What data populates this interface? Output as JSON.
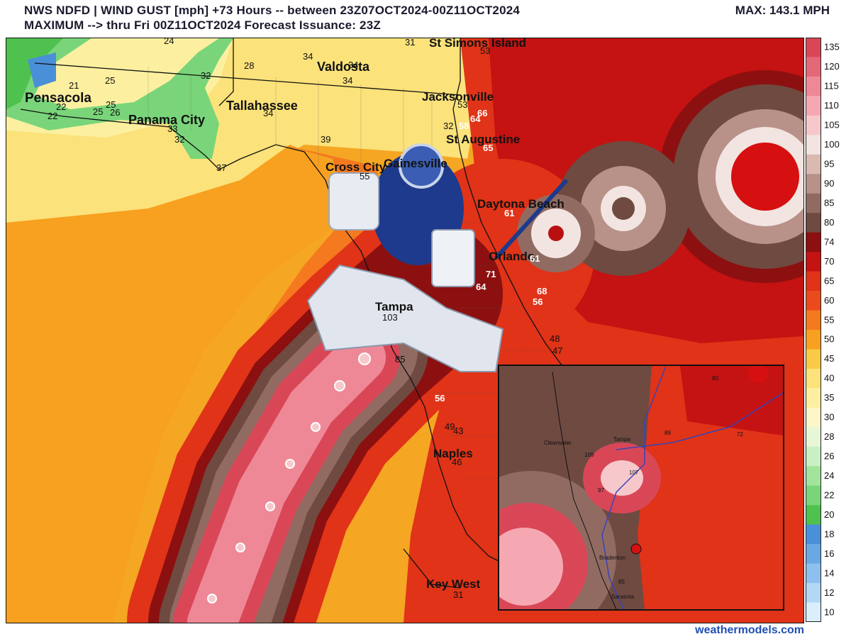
{
  "header": {
    "line1": "NWS NDFD | WIND GUST [mph] +73 Hours -- between 23Z07OCT2024-00Z11OCT2024",
    "line2": "MAXIMUM --> thru Fri 00Z11OCT2024   Forecast Issuance: 23Z",
    "max_label": "MAX: 143.1 MPH"
  },
  "credit": "weathermodels.com",
  "cities": [
    {
      "name": "St Simons Island"
    },
    {
      "name": "Valdosta"
    },
    {
      "name": "Jacksonville"
    },
    {
      "name": "Pensacola"
    },
    {
      "name": "Tallahassee"
    },
    {
      "name": "Panama City"
    },
    {
      "name": "St Augustine"
    },
    {
      "name": "Cross City"
    },
    {
      "name": "Gainesville"
    },
    {
      "name": "Daytona Beach"
    },
    {
      "name": "Orlando"
    },
    {
      "name": "Tampa"
    },
    {
      "name": "Naples"
    },
    {
      "name": "Key West"
    }
  ],
  "gust_values": [
    "24",
    "31",
    "53",
    "34",
    "34",
    "34",
    "28",
    "25",
    "21",
    "25",
    "22",
    "22",
    "25",
    "26",
    "32",
    "33",
    "32",
    "34",
    "39",
    "37",
    "53",
    "66",
    "64",
    "58",
    "32",
    "65",
    "55",
    "61",
    "61",
    "71",
    "64",
    "68",
    "56",
    "48",
    "47",
    "85",
    "56",
    "49",
    "43",
    "46",
    "31",
    "103"
  ],
  "inset": {
    "cities": [
      "Clearwater",
      "Tampa",
      "Bradenton",
      "Sarasota"
    ],
    "values": [
      "109",
      "107",
      "89",
      "72",
      "97",
      "85",
      "80"
    ]
  },
  "legend": {
    "ticks": [
      "135",
      "120",
      "115",
      "110",
      "105",
      "100",
      "95",
      "90",
      "85",
      "80",
      "74",
      "70",
      "65",
      "60",
      "55",
      "50",
      "45",
      "40",
      "35",
      "30",
      "28",
      "26",
      "24",
      "22",
      "20",
      "18",
      "16",
      "14",
      "12",
      "10"
    ],
    "colors": [
      "#d94757",
      "#e56878",
      "#ef8896",
      "#f6a8b2",
      "#f6c8cc",
      "#f2e4e1",
      "#d9b9b0",
      "#b89189",
      "#916b62",
      "#6f4a41",
      "#8c1010",
      "#c51212",
      "#e03318",
      "#ea4a1c",
      "#f5791e",
      "#f8a020",
      "#faca46",
      "#fbe27a",
      "#fcf0a0",
      "#fbf7c8",
      "#e8f6d8",
      "#c8f0c4",
      "#a2e49b",
      "#7ad57a",
      "#4fc14f",
      "#4a90d8",
      "#6aa8e4",
      "#8dc0ee",
      "#b3d8f6",
      "#dbeefc"
    ]
  },
  "colors": {
    "title": "#1a1a2e",
    "credit": "#1f4fb3",
    "storm_core": "#d61010"
  }
}
